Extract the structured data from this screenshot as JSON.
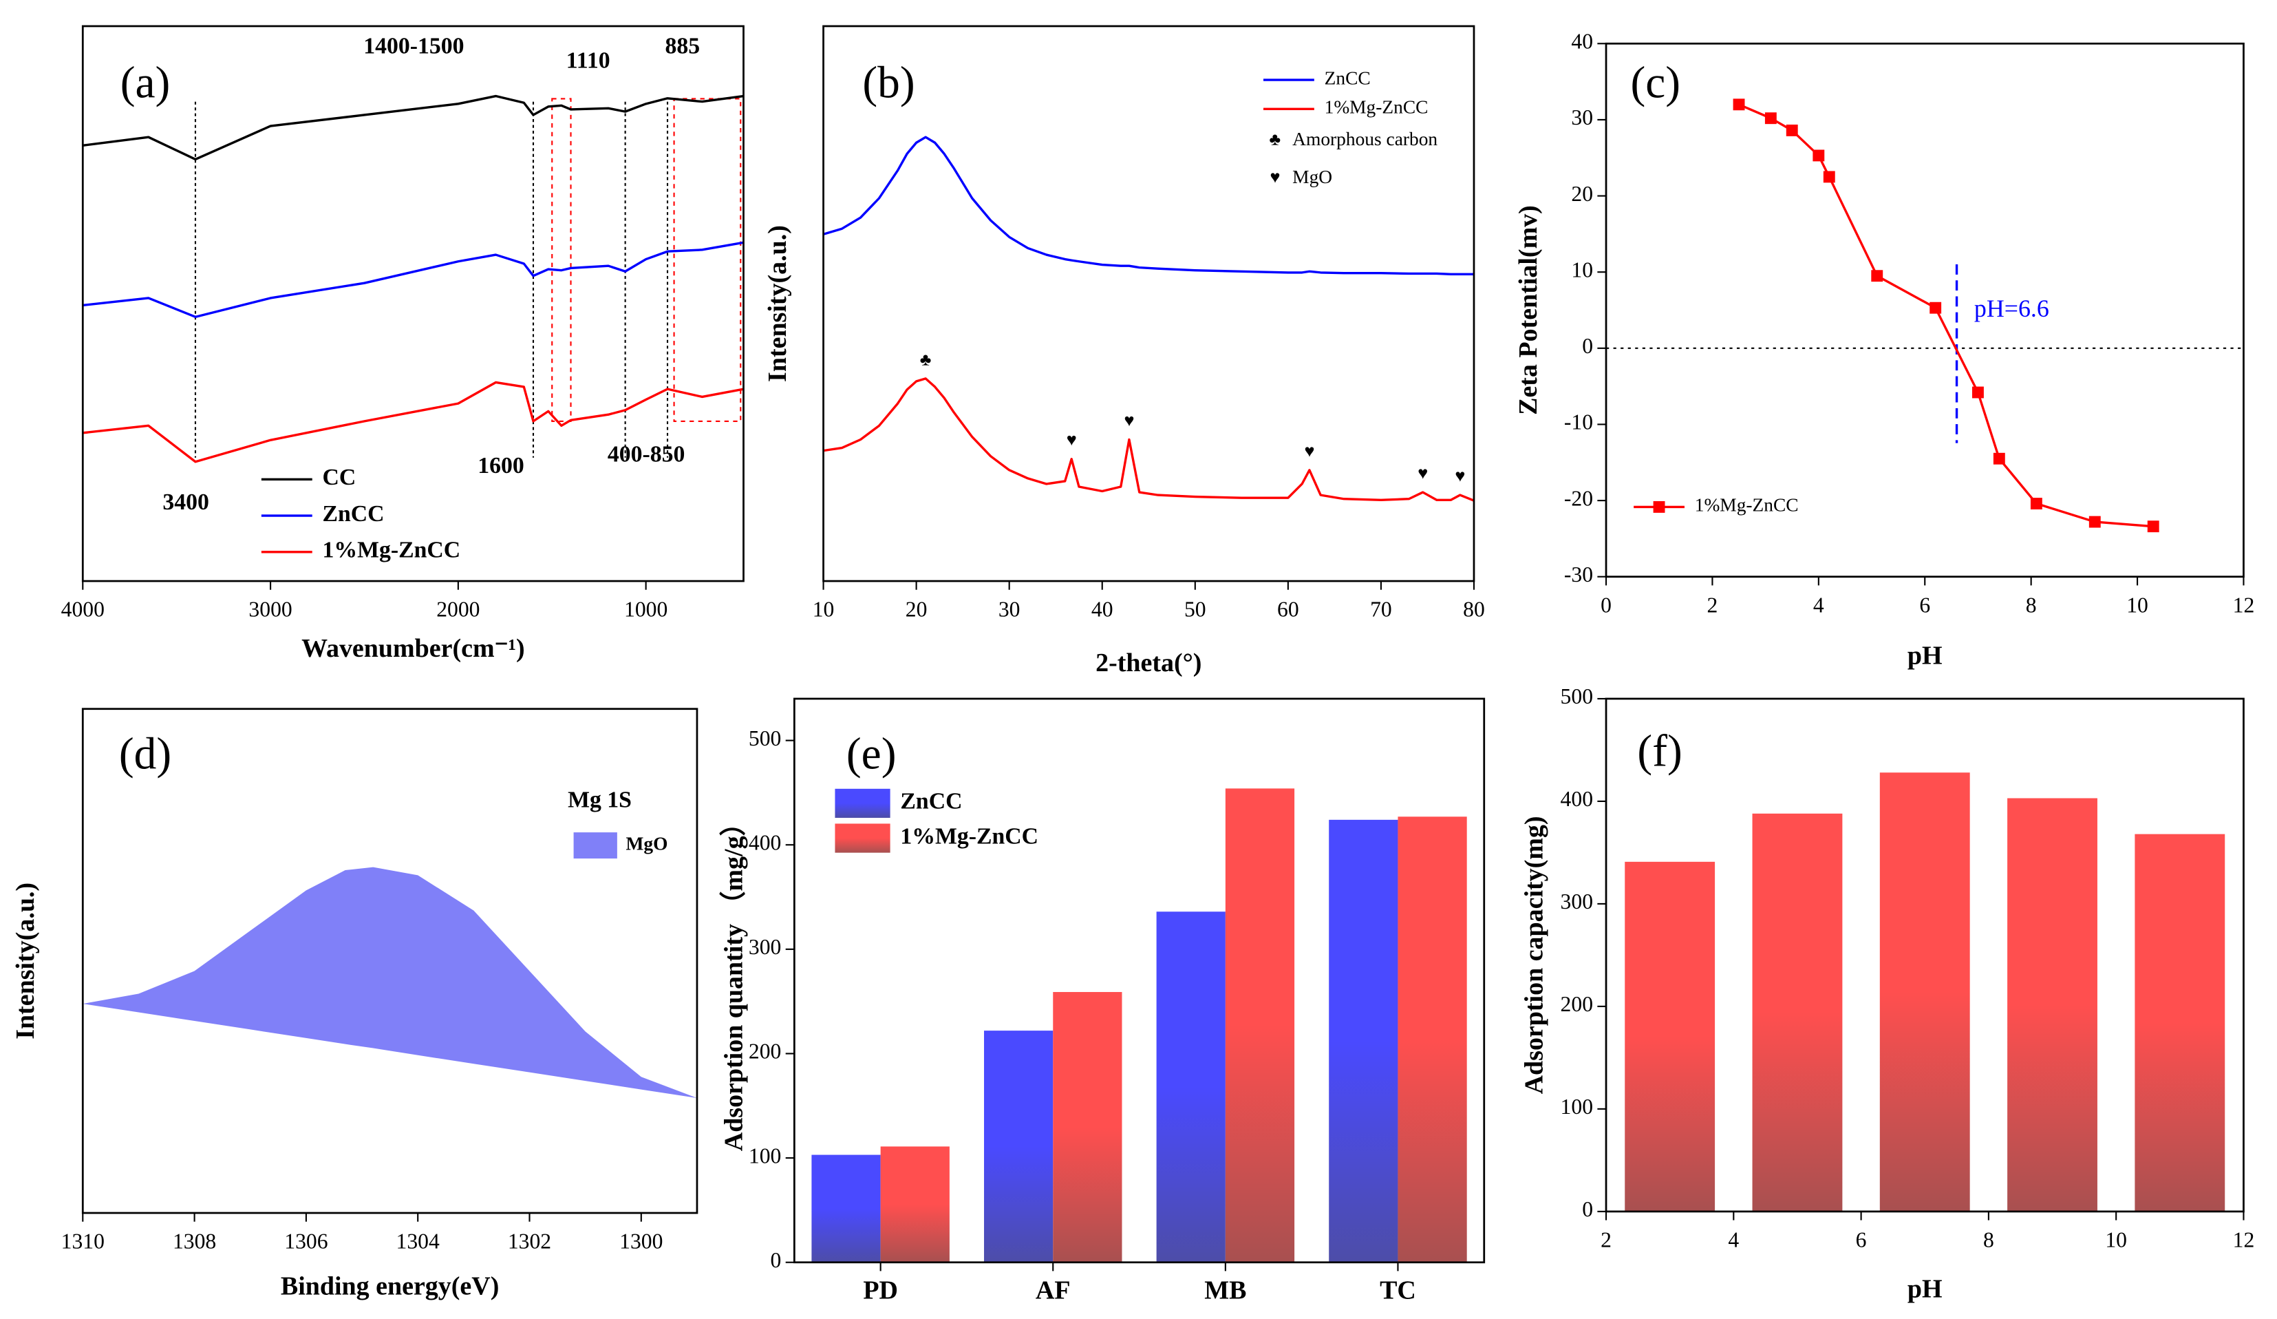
{
  "chart_data": [
    {
      "type": "line",
      "panel_label": "(a)",
      "xlabel": "Wavenumber(cm⁻¹)",
      "xlim": [
        4000,
        480
      ],
      "xticks": [
        4000,
        3000,
        2000,
        1000
      ],
      "ylim": [
        0,
        100
      ],
      "x": [
        4000,
        3650,
        3400,
        3000,
        2500,
        2000,
        1800,
        1650,
        1600,
        1520,
        1450,
        1400,
        1200,
        1110,
        1000,
        885,
        700,
        480
      ],
      "series": [
        {
          "name": "CC",
          "color": "#000000",
          "values": [
            78.5,
            80,
            76,
            82,
            84,
            86,
            87.4,
            86.2,
            84,
            85.5,
            85.7,
            85,
            85.2,
            84.6,
            86,
            87,
            86.4,
            87.4
          ]
        },
        {
          "name": "ZnCC",
          "color": "#0000ff",
          "values": [
            49.7,
            51,
            47.6,
            51,
            53.7,
            57.6,
            58.8,
            57.2,
            55,
            56.2,
            56,
            56.4,
            56.8,
            55.8,
            58,
            59.4,
            59.7,
            61
          ]
        },
        {
          "name": "1%Mg-ZnCC",
          "color": "#ff0000",
          "values": [
            26.7,
            28,
            21.5,
            25.4,
            28.8,
            32,
            35.8,
            35,
            28.8,
            30.6,
            28,
            29,
            30,
            30.8,
            32.7,
            34.6,
            33.2,
            34.6
          ]
        }
      ],
      "annotations": [
        {
          "range": [
            1400,
            1500
          ],
          "label": "1400-1500"
        },
        {
          "value": 1110,
          "label": "1110"
        },
        {
          "value": 885,
          "label": "885"
        },
        {
          "value": 3400,
          "label": "3400"
        },
        {
          "value": 1600,
          "label": "1600"
        },
        {
          "range": [
            400,
            850
          ],
          "label": "400-850"
        }
      ]
    },
    {
      "type": "line",
      "panel_label": "(b)",
      "xlabel": "2-theta(°)",
      "ylabel": "Intensity(a.u.)",
      "xlim": [
        10,
        80
      ],
      "xticks": [
        10,
        20,
        30,
        40,
        50,
        60,
        70,
        80
      ],
      "ylim": [
        0,
        100
      ],
      "x": [
        10,
        12,
        14,
        16,
        18,
        19,
        20,
        21,
        22,
        23,
        24,
        26,
        28,
        30,
        32,
        34,
        36,
        36.7,
        37.5,
        40,
        42,
        42.9,
        44,
        46,
        50,
        55,
        60,
        61.5,
        62.3,
        63.5,
        66,
        70,
        73,
        74.5,
        76,
        77.5,
        78.5,
        80
      ],
      "series": [
        {
          "name": "ZnCC",
          "color": "#0000ff",
          "values": [
            62.5,
            63.5,
            65.5,
            69,
            74,
            77,
            79,
            80,
            79,
            77,
            74.5,
            69,
            65,
            62,
            60,
            58.8,
            58,
            57.8,
            57.6,
            57,
            56.8,
            56.8,
            56.5,
            56.3,
            56,
            55.8,
            55.6,
            55.6,
            55.8,
            55.6,
            55.5,
            55.5,
            55.4,
            55.4,
            55.4,
            55.3,
            55.3,
            55.3
          ]
        },
        {
          "name": "1%Mg-ZnCC",
          "color": "#ff0000",
          "values": [
            23.5,
            24,
            25.5,
            28,
            32,
            34.5,
            36,
            36.5,
            35,
            33,
            30.5,
            26,
            22.5,
            20,
            18.5,
            17.5,
            18,
            22,
            17,
            16.2,
            17,
            25.5,
            16,
            15.5,
            15.2,
            15,
            15,
            17.5,
            20,
            15.5,
            14.8,
            14.6,
            14.8,
            16,
            14.6,
            14.6,
            15.5,
            14.5
          ]
        }
      ],
      "symbols": [
        {
          "symbol": "♣",
          "label": "Amorphous carbon",
          "x": [
            21
          ]
        },
        {
          "symbol": "♥",
          "label": "MgO",
          "x": [
            36.7,
            42.9,
            62.3,
            74.5,
            78.5
          ]
        }
      ]
    },
    {
      "type": "line",
      "markers": true,
      "panel_label": "(c)",
      "xlabel": "pH",
      "ylabel": "Zeta Potential(mv)",
      "xlim": [
        0,
        12
      ],
      "xticks": [
        0,
        2,
        4,
        6,
        8,
        10,
        12
      ],
      "ylim": [
        -30,
        40
      ],
      "yticks": [
        -30,
        -20,
        -10,
        0,
        10,
        20,
        30,
        40
      ],
      "x": [
        2.5,
        3.1,
        3.5,
        4.0,
        4.2,
        5.1,
        6.2,
        7.0,
        7.4,
        8.1,
        9.2,
        10.3
      ],
      "series": [
        {
          "name": "1%Mg-ZnCC",
          "color": "#ff0000",
          "values": [
            32,
            30.2,
            28.6,
            25.3,
            22.5,
            9.5,
            5.3,
            -5.8,
            -14.5,
            -20.4,
            -22.8,
            -23.4
          ]
        }
      ],
      "hline": 0,
      "vline": {
        "value": 6.6,
        "label": "pH=6.6",
        "color": "#0000ff"
      }
    },
    {
      "type": "area",
      "panel_label": "(d)",
      "xlabel": "Binding energy(eV)",
      "ylabel": "Intensity(a.u.)",
      "xlim": [
        1310,
        1299
      ],
      "xticks": [
        1310,
        1308,
        1306,
        1304,
        1302,
        1300
      ],
      "ylim": [
        0,
        100
      ],
      "x": [
        1310,
        1309,
        1308,
        1307,
        1306,
        1305.3,
        1304.8,
        1304,
        1303,
        1302,
        1301,
        1300,
        1299
      ],
      "legend_title": "Mg 1S",
      "series": [
        {
          "name": "MgO",
          "color": "#8080f8",
          "values": [
            41.5,
            43.5,
            48,
            56,
            64,
            68,
            68.6,
            67,
            60,
            48,
            36,
            27,
            22.8
          ]
        },
        {
          "values": [
            41.5,
            39.8,
            38.1,
            36.4,
            34.7,
            33.5,
            32.7,
            31.3,
            29.6,
            27.9,
            26.2,
            24.5,
            22.8
          ]
        }
      ]
    },
    {
      "type": "bar",
      "panel_label": "(e)",
      "ylabel": "Adsorption quantity （mg/g）",
      "categories": [
        "PD",
        "AF",
        "MB",
        "TC"
      ],
      "ylim": [
        0,
        540
      ],
      "yticks": [
        0,
        100,
        200,
        300,
        400,
        500
      ],
      "series": [
        {
          "name": "ZnCC",
          "color": "#4a4aff",
          "values": [
            103,
            222,
            336,
            424
          ]
        },
        {
          "name": "1%Mg-ZnCC",
          "color": "#ff4f4f",
          "values": [
            111,
            259,
            454,
            427
          ]
        }
      ]
    },
    {
      "type": "bar",
      "panel_label": "(f)",
      "xlabel": "pH",
      "ylabel": "Adsorption capacity(mg)",
      "xlim": [
        2,
        12
      ],
      "xticks": [
        2,
        4,
        6,
        8,
        10,
        12
      ],
      "ylim": [
        0,
        500
      ],
      "yticks": [
        0,
        100,
        200,
        300,
        400,
        500
      ],
      "x": [
        3,
        5,
        7,
        9,
        11
      ],
      "series": [
        {
          "color": "#ff4f4f",
          "values": [
            341,
            388,
            428,
            403,
            368
          ]
        }
      ]
    }
  ]
}
